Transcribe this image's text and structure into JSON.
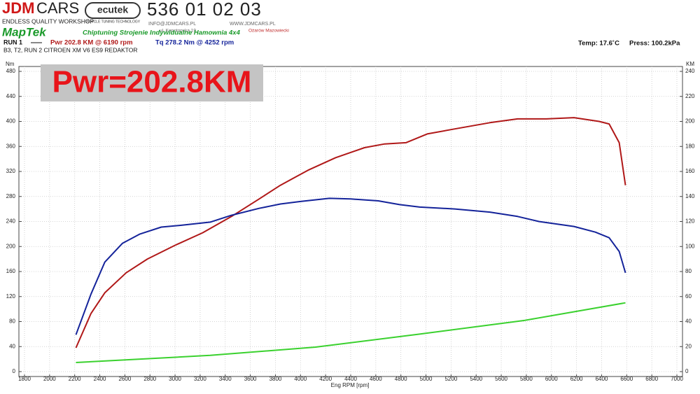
{
  "header": {
    "logo_part1": "JDM",
    "logo_part2": "CARS",
    "logo_tagline": "ENDLESS QUALITY WORKSHOP",
    "ecutek": "ecutek",
    "ecutek_tagline": "VEHICLE TUNING TECHNOLOGY",
    "phone": "536 01 02 03",
    "email": "INFO@JDMCARS.PL",
    "website": "WWW.JDMCARS.PL",
    "street": "ul. Konotopska 19,",
    "city": "Ożarów Mazowiecki",
    "maptek": "MapTek",
    "services": "Chiptuning Strojenie Indywidualne Hamownia 4x4",
    "run_label": "RUN 1",
    "run_description": "B3, T2, RUN 2 CITROEN XM V6 ES9 REDAKTOR",
    "temperature": "Temp: 17.6˚C",
    "pressure": "Press: 100.2kPa"
  },
  "chart_data": {
    "type": "line",
    "annotation": "Pwr=202.8KM",
    "x_label": "Eng RPM [rpm]",
    "y_label": "Nm",
    "y2_label": "KM",
    "xlim": [
      1800,
      7000
    ],
    "xticks": [
      1800,
      2000,
      2200,
      2400,
      2600,
      2800,
      3000,
      3200,
      3400,
      3600,
      3800,
      4000,
      4200,
      4400,
      4600,
      4800,
      5000,
      5200,
      5400,
      5600,
      5800,
      6000,
      6200,
      6400,
      6600,
      6800,
      7000
    ],
    "ylim": [
      0,
      480
    ],
    "yticks": [
      0,
      40,
      80,
      120,
      160,
      200,
      240,
      280,
      320,
      360,
      400,
      440,
      480
    ],
    "y2lim": [
      0,
      240
    ],
    "y2ticks": [
      0,
      20,
      40,
      60,
      80,
      100,
      120,
      140,
      160,
      180,
      200,
      220,
      240
    ],
    "grid": true,
    "series": [
      {
        "name": "Pwr  202.8 KM @ 6190 rpm",
        "color": "#b01818",
        "axis": "y2",
        "x": [
          2210,
          2330,
          2440,
          2610,
          2780,
          3000,
          3220,
          3450,
          3670,
          3840,
          4060,
          4280,
          4510,
          4670,
          4840,
          5010,
          5230,
          5510,
          5730,
          5960,
          6180,
          6380,
          6460,
          6540,
          6590
        ],
        "values": [
          19,
          46.5,
          63,
          79,
          90,
          101,
          111,
          124,
          138,
          149,
          161,
          171,
          179,
          182,
          183,
          190,
          194,
          199,
          202,
          202,
          203,
          200,
          198,
          183,
          149
        ]
      },
      {
        "name": "Tq 278.2 Nm @ 4252 rpm",
        "color": "#14239a",
        "x": [
          2210,
          2330,
          2440,
          2580,
          2720,
          2890,
          3050,
          3280,
          3450,
          3670,
          3840,
          4000,
          4230,
          4400,
          4620,
          4790,
          4950,
          5230,
          5510,
          5730,
          5900,
          6180,
          6350,
          6460,
          6540,
          6590
        ],
        "values": [
          59,
          124,
          175,
          205,
          220,
          231,
          234,
          239,
          250,
          261,
          268,
          272,
          277,
          276,
          273,
          267,
          263,
          260,
          255,
          248,
          240,
          232,
          223,
          214,
          192,
          158
        ]
      },
      {
        "color": "#3ad12e",
        "axis": "y2",
        "x": [
          2210,
          3280,
          4120,
          4950,
          5790,
          6590
        ],
        "values": [
          7.3,
          13,
          19.6,
          30,
          41,
          55
        ]
      }
    ]
  }
}
